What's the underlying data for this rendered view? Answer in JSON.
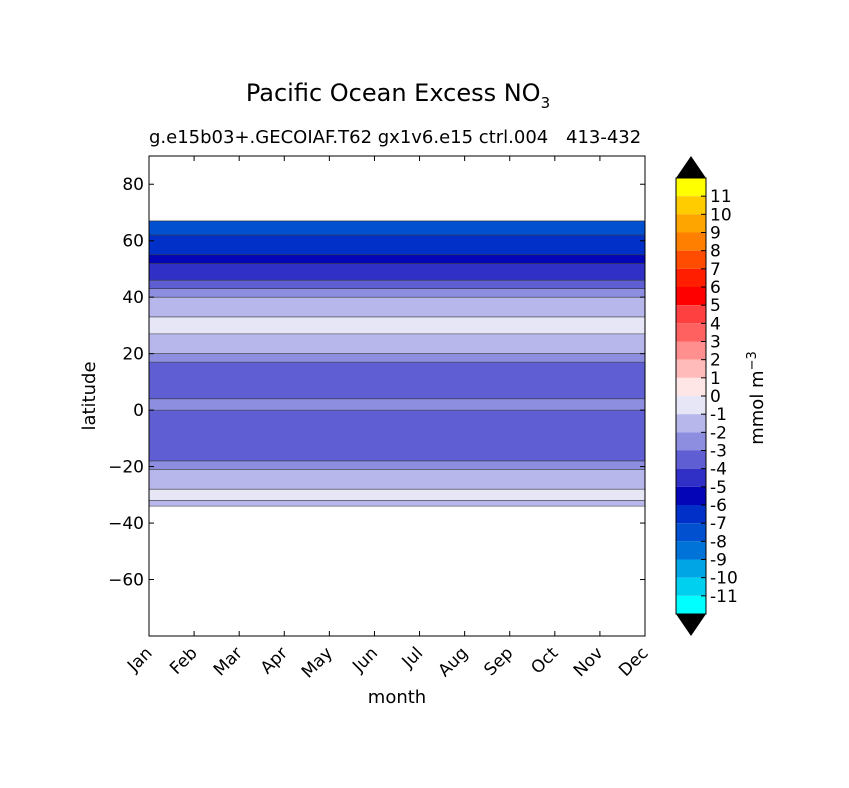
{
  "chart_data": {
    "type": "heatmap",
    "title": "Pacific Ocean Excess NO",
    "title_subscript": "3",
    "subtitle": "g.e15b03+.GECOIAF.T62 gx1v6.e15 ctrl.004",
    "subtitle_right": "413-432",
    "xlabel": "month",
    "ylabel": "latitude",
    "x_ticks": [
      "Jan",
      "Feb",
      "Mar",
      "Apr",
      "May",
      "Jun",
      "Jul",
      "Aug",
      "Sep",
      "Oct",
      "Nov",
      "Dec"
    ],
    "y_ticks": [
      80,
      60,
      40,
      20,
      0,
      -20,
      -40,
      -60
    ],
    "y_tick_labels": [
      "80",
      "60",
      "40",
      "20",
      "0",
      "−20",
      "−40",
      "−60"
    ],
    "ylim": [
      -80,
      90
    ],
    "data_lat_range": [
      -34,
      67
    ],
    "colorbar": {
      "label": "mmol m",
      "label_superscript": "−3",
      "levels": [
        {
          "label": "11",
          "color": "#ffff00"
        },
        {
          "label": "10",
          "color": "#ffcc00"
        },
        {
          "label": "9",
          "color": "#ffa500"
        },
        {
          "label": "8",
          "color": "#ff7f00"
        },
        {
          "label": "7",
          "color": "#ff4c00"
        },
        {
          "label": "6",
          "color": "#ff1f00"
        },
        {
          "label": "5",
          "color": "#ff0000"
        },
        {
          "label": "4",
          "color": "#ff4040"
        },
        {
          "label": "3",
          "color": "#ff6060"
        },
        {
          "label": "2",
          "color": "#ff8e8e"
        },
        {
          "label": "1",
          "color": "#ffbaba"
        },
        {
          "label": "0",
          "color": "#ffe6e6"
        },
        {
          "label": "-1",
          "color": "#e6e6f6"
        },
        {
          "label": "-2",
          "color": "#b7b7ec"
        },
        {
          "label": "-3",
          "color": "#8e8ee0"
        },
        {
          "label": "-4",
          "color": "#5f5fd3"
        },
        {
          "label": "-5",
          "color": "#3030c6"
        },
        {
          "label": "-6",
          "color": "#0505b8"
        },
        {
          "label": "-7",
          "color": "#0030c8"
        },
        {
          "label": "-8",
          "color": "#0050d0"
        },
        {
          "label": "-9",
          "color": "#0073d9"
        },
        {
          "label": "-10",
          "color": "#00a5e6"
        },
        {
          "label": "-11",
          "color": "#00d0f0"
        }
      ],
      "bottom_color": "#00ffff",
      "extend_color": "#000000"
    },
    "bands": [
      {
        "from": -34,
        "to": -32,
        "value": -2,
        "color": "#b7b7ec"
      },
      {
        "from": -32,
        "to": -28,
        "value": -1,
        "color": "#e6e6f6"
      },
      {
        "from": -28,
        "to": -21,
        "value": -2,
        "color": "#b7b7ec"
      },
      {
        "from": -21,
        "to": -18,
        "value": -3,
        "color": "#8e8ee0"
      },
      {
        "from": -18,
        "to": 0,
        "value": -4,
        "color": "#5f5fd3"
      },
      {
        "from": 0,
        "to": 4,
        "value": -3,
        "color": "#8e8ee0"
      },
      {
        "from": 4,
        "to": 17,
        "value": -4,
        "color": "#5f5fd3"
      },
      {
        "from": 17,
        "to": 20,
        "value": -3,
        "color": "#8e8ee0"
      },
      {
        "from": 20,
        "to": 27,
        "value": -2,
        "color": "#b7b7ec"
      },
      {
        "from": 27,
        "to": 33,
        "value": -1,
        "color": "#e6e6f6"
      },
      {
        "from": 33,
        "to": 40,
        "value": -2,
        "color": "#b7b7ec"
      },
      {
        "from": 40,
        "to": 43,
        "value": -3,
        "color": "#8e8ee0"
      },
      {
        "from": 43,
        "to": 46,
        "value": -4,
        "color": "#5f5fd3"
      },
      {
        "from": 46,
        "to": 52,
        "value": -5,
        "color": "#3030c6"
      },
      {
        "from": 52,
        "to": 55,
        "value": -6,
        "color": "#0505b8"
      },
      {
        "from": 55,
        "to": 62,
        "value": -7,
        "color": "#0030c8"
      },
      {
        "from": 62,
        "to": 67,
        "value": -8,
        "color": "#0050d0"
      }
    ]
  }
}
